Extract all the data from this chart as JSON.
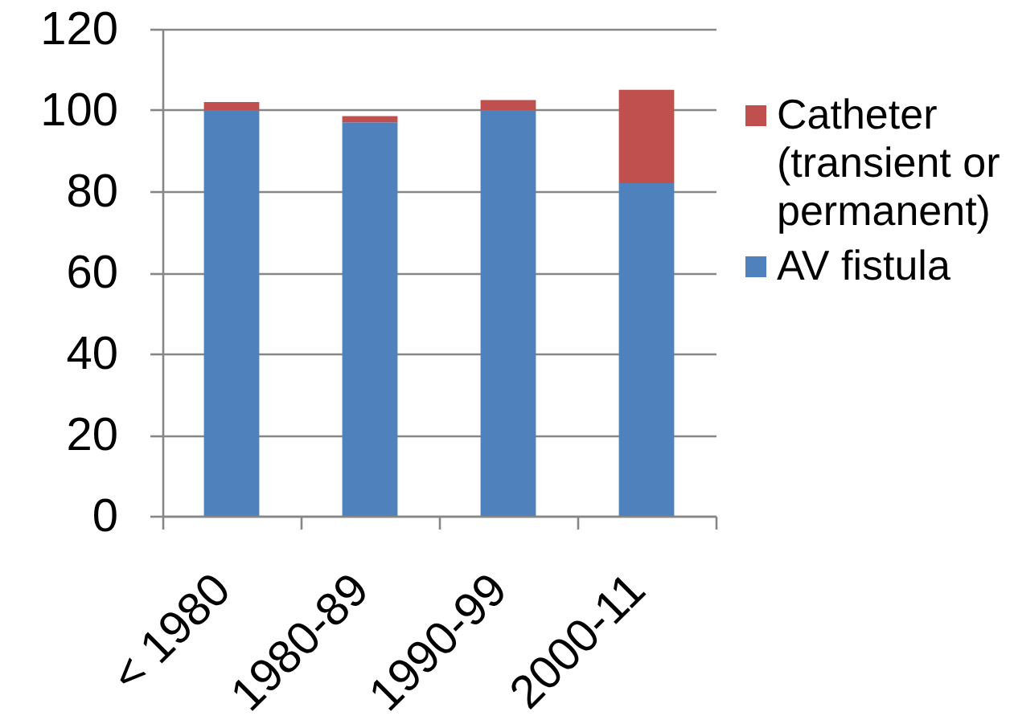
{
  "chart_data": {
    "type": "bar",
    "stacked": true,
    "categories": [
      "< 1980",
      "1980-89",
      "1990-99",
      "2000-11"
    ],
    "series": [
      {
        "name": "AV fistula",
        "color": "#4f81bd",
        "values": [
          100,
          97,
          100,
          82
        ]
      },
      {
        "name": "Catheter (transient or permanent)",
        "color": "#c0504d",
        "values": [
          2,
          1.5,
          2.5,
          23
        ]
      }
    ],
    "ylim": [
      0,
      120
    ],
    "yticks": [
      0,
      20,
      40,
      60,
      80,
      100,
      120
    ],
    "grid": "y",
    "legend": "right"
  }
}
